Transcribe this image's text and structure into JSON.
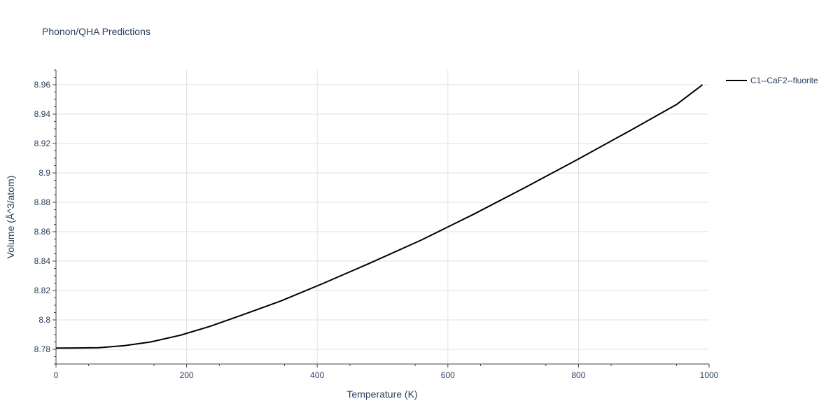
{
  "chart_data": {
    "type": "line",
    "title": "Phonon/QHA Predictions",
    "xlabel": "Temperature (K)",
    "ylabel": "Volume (Å^3/atom)",
    "xlim": [
      0,
      1000
    ],
    "ylim": [
      8.77,
      8.97
    ],
    "x_ticks": [
      "0",
      "200",
      "400",
      "600",
      "800",
      "1000"
    ],
    "x_tick_values": [
      0,
      200,
      400,
      600,
      800,
      1000
    ],
    "y_ticks": [
      "8.78",
      "8.8",
      "8.82",
      "8.84",
      "8.86",
      "8.88",
      "8.9",
      "8.92",
      "8.94",
      "8.96"
    ],
    "y_tick_values": [
      8.78,
      8.8,
      8.82,
      8.84,
      8.86,
      8.88,
      8.9,
      8.92,
      8.94,
      8.96
    ],
    "grid": true,
    "legend_position": "top-right",
    "series": [
      {
        "name": "C1--CaF2--fluorite",
        "color": "#000000",
        "x": [
          0,
          30,
          65,
          105,
          145,
          190,
          235,
          280,
          345,
          410,
          480,
          560,
          640,
          720,
          800,
          880,
          950,
          990
        ],
        "y": [
          8.7808,
          8.7809,
          8.7811,
          8.7825,
          8.785,
          8.7895,
          8.7955,
          8.8025,
          8.813,
          8.825,
          8.8385,
          8.8545,
          8.872,
          8.8905,
          8.9095,
          8.929,
          8.9465,
          8.96
        ]
      }
    ]
  }
}
